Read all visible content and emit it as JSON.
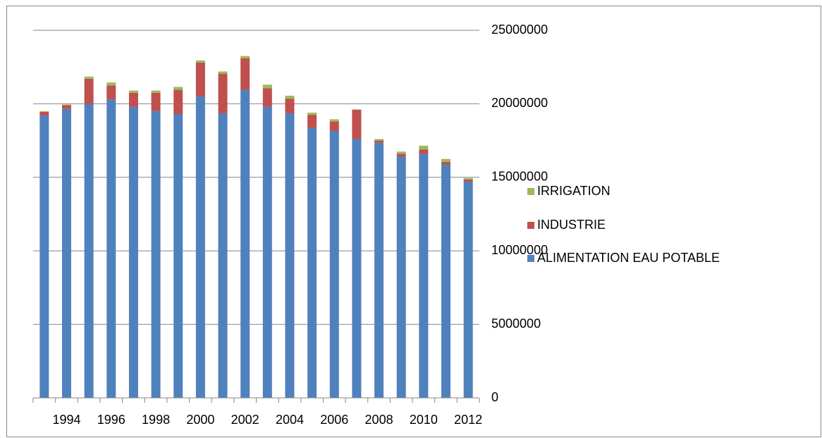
{
  "chart_data": {
    "type": "stacked_bar",
    "categories": [
      null,
      "1994",
      null,
      "1996",
      null,
      "1998",
      null,
      "2000",
      null,
      "2002",
      null,
      "2004",
      null,
      "2006",
      null,
      "2008",
      null,
      "2010",
      null,
      "2012"
    ],
    "series": [
      {
        "name": "ALIMENTATION EAU POTABLE",
        "color": "#4f81bd",
        "values": [
          19200000,
          19650000,
          20000000,
          20300000,
          19800000,
          19500000,
          19300000,
          20500000,
          19350000,
          20950000,
          19800000,
          19350000,
          18350000,
          18150000,
          17600000,
          17350000,
          16400000,
          16600000,
          15850000,
          14700000
        ]
      },
      {
        "name": "INDUSTRIE",
        "color": "#c0504d",
        "values": [
          250000,
          250000,
          1700000,
          950000,
          950000,
          1250000,
          1650000,
          2300000,
          2700000,
          2150000,
          1250000,
          1000000,
          900000,
          650000,
          2000000,
          150000,
          200000,
          300000,
          200000,
          150000
        ]
      },
      {
        "name": "IRRIGATION",
        "color": "#9bbb59",
        "values": [
          50000,
          50000,
          150000,
          200000,
          150000,
          150000,
          200000,
          150000,
          150000,
          150000,
          250000,
          200000,
          150000,
          150000,
          20000,
          100000,
          150000,
          250000,
          200000,
          100000
        ]
      }
    ],
    "ylim": [
      0,
      25000000
    ],
    "yticks": [
      0,
      5000000,
      10000000,
      15000000,
      20000000,
      25000000
    ],
    "grid": true,
    "legend": "right"
  }
}
